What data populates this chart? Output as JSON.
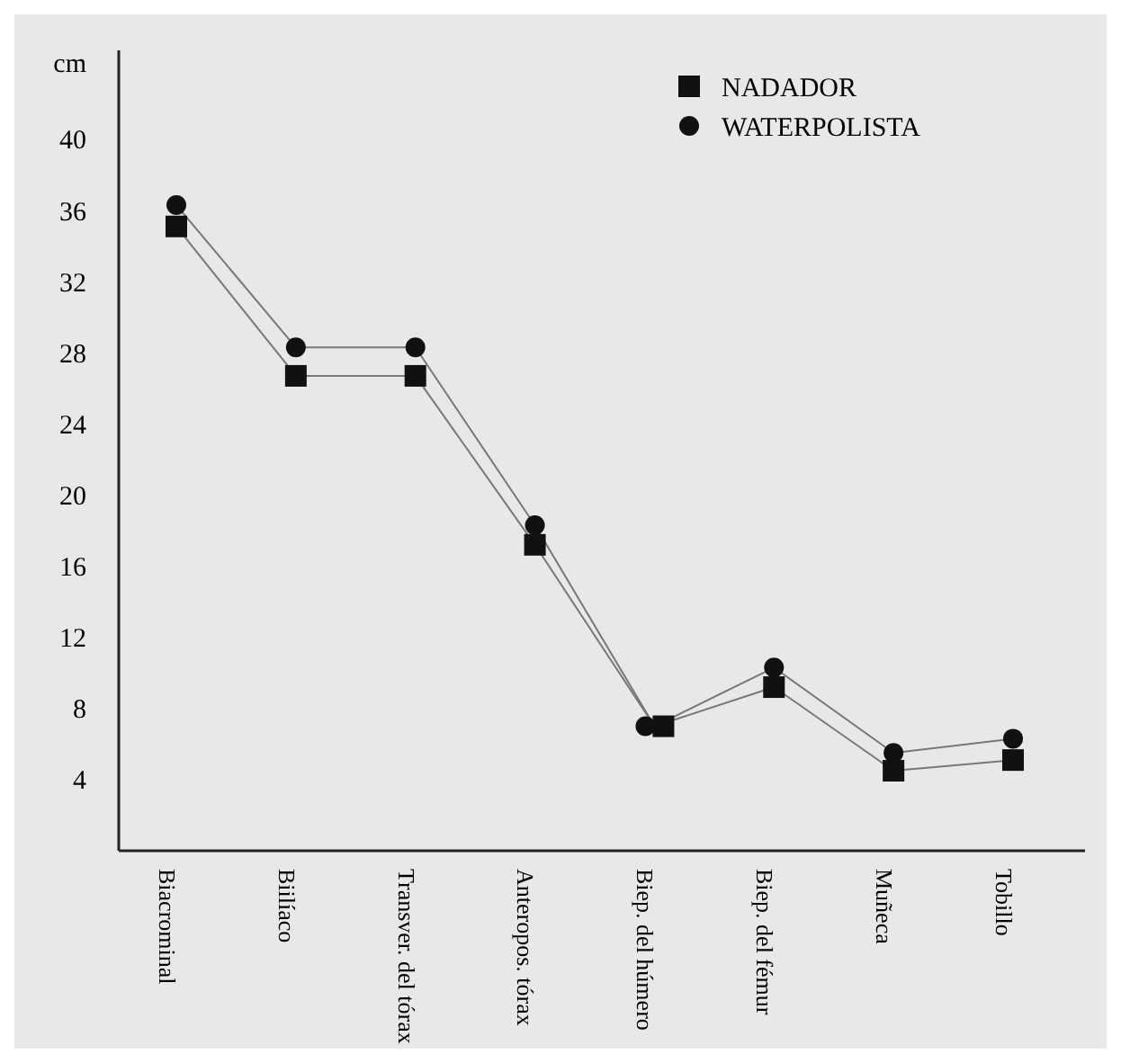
{
  "chart_data": {
    "type": "line",
    "ylabel": "cm",
    "categories": [
      "Biacrominal",
      "Biilíaco",
      "Transver. del tórax",
      "Anteropos. tórax",
      "Biep. del húmero",
      "Biep. del fémur",
      "Muñeca",
      "Tobillo"
    ],
    "series": [
      {
        "name": "NADADOR",
        "color": "#111111",
        "marker": "square",
        "values": [
          35.1,
          26.7,
          26.7,
          17.2,
          7.0,
          9.2,
          4.5,
          5.1
        ]
      },
      {
        "name": "WATERPOLISTA",
        "color": "#111111",
        "marker": "circle",
        "values": [
          36.3,
          28.3,
          28.3,
          18.3,
          7.0,
          10.3,
          5.5,
          6.3
        ]
      }
    ],
    "ylim": [
      0,
      45
    ],
    "yticks": [
      4,
      8,
      12,
      16,
      20,
      24,
      28,
      32,
      36,
      40
    ],
    "grid": false,
    "legend": "top right"
  }
}
